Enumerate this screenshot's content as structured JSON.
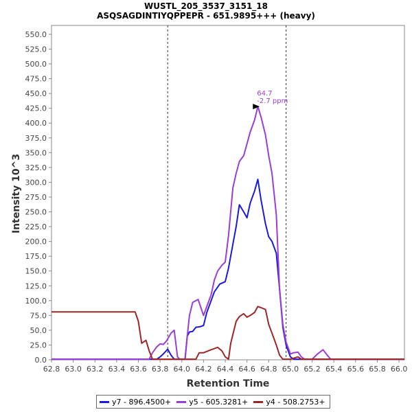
{
  "chart_data": {
    "type": "line",
    "title": "WUSTL_205_3537_3151_18",
    "subtitle": "ASQSAGDINTIYQPPEPR - 651.9895+++ (heavy)",
    "xlabel": "Retention Time",
    "ylabel": "Intensity 10^3",
    "xlim": [
      62.8,
      66.05
    ],
    "ylim": [
      0,
      565
    ],
    "x_ticks": [
      "62.8",
      "63.0",
      "63.2",
      "63.4",
      "63.6",
      "63.8",
      "64.0",
      "64.2",
      "64.4",
      "64.6",
      "64.8",
      "65.0",
      "65.2",
      "65.4",
      "65.6",
      "65.8",
      "66.0"
    ],
    "y_ticks": [
      "0.0",
      "25.0",
      "50.0",
      "75.0",
      "100.0",
      "125.0",
      "150.0",
      "175.0",
      "200.0",
      "225.0",
      "250.0",
      "275.0",
      "300.0",
      "325.0",
      "350.0",
      "375.0",
      "400.0",
      "425.0",
      "450.0",
      "475.0",
      "500.0",
      "525.0",
      "550.0"
    ],
    "vlines": [
      63.87,
      64.96
    ],
    "annotation": {
      "x": 64.73,
      "y": 428,
      "lines": [
        "64.7",
        "-2.7 ppm"
      ]
    },
    "legend_position": "bottom",
    "series": [
      {
        "name": "y7 - 896.4500+",
        "color": "#1a1adc",
        "points": [
          [
            62.8,
            1
          ],
          [
            63.77,
            1
          ],
          [
            63.8,
            5
          ],
          [
            63.83,
            10
          ],
          [
            63.87,
            18
          ],
          [
            63.9,
            8
          ],
          [
            63.93,
            1
          ],
          [
            64.03,
            1
          ],
          [
            64.05,
            40
          ],
          [
            64.07,
            47
          ],
          [
            64.1,
            48
          ],
          [
            64.13,
            55
          ],
          [
            64.17,
            56
          ],
          [
            64.2,
            58
          ],
          [
            64.23,
            80
          ],
          [
            64.27,
            100
          ],
          [
            64.3,
            115
          ],
          [
            64.35,
            128
          ],
          [
            64.4,
            132
          ],
          [
            64.43,
            155
          ],
          [
            64.47,
            195
          ],
          [
            64.5,
            225
          ],
          [
            64.53,
            262
          ],
          [
            64.57,
            250
          ],
          [
            64.6,
            240
          ],
          [
            64.63,
            265
          ],
          [
            64.67,
            285
          ],
          [
            64.7,
            305
          ],
          [
            64.73,
            270
          ],
          [
            64.77,
            230
          ],
          [
            64.8,
            208
          ],
          [
            64.83,
            200
          ],
          [
            64.87,
            180
          ],
          [
            64.9,
            120
          ],
          [
            64.93,
            55
          ],
          [
            64.96,
            25
          ],
          [
            65.0,
            5
          ],
          [
            65.03,
            1
          ],
          [
            66.05,
            1
          ]
        ]
      },
      {
        "name": "y5 - 605.3281+",
        "color": "#9a3cd8",
        "points": [
          [
            62.8,
            1
          ],
          [
            63.7,
            1
          ],
          [
            63.73,
            12
          ],
          [
            63.77,
            22
          ],
          [
            63.8,
            27
          ],
          [
            63.83,
            26
          ],
          [
            63.86,
            32
          ],
          [
            63.9,
            45
          ],
          [
            63.93,
            50
          ],
          [
            63.96,
            5
          ],
          [
            63.98,
            1
          ],
          [
            64.03,
            1
          ],
          [
            64.05,
            40
          ],
          [
            64.07,
            75
          ],
          [
            64.1,
            97
          ],
          [
            64.15,
            102
          ],
          [
            64.2,
            75
          ],
          [
            64.23,
            90
          ],
          [
            64.27,
            110
          ],
          [
            64.3,
            135
          ],
          [
            64.33,
            150
          ],
          [
            64.37,
            160
          ],
          [
            64.4,
            165
          ],
          [
            64.43,
            210
          ],
          [
            64.47,
            290
          ],
          [
            64.5,
            315
          ],
          [
            64.53,
            335
          ],
          [
            64.57,
            345
          ],
          [
            64.6,
            365
          ],
          [
            64.63,
            385
          ],
          [
            64.67,
            405
          ],
          [
            64.7,
            428
          ],
          [
            64.73,
            410
          ],
          [
            64.77,
            380
          ],
          [
            64.8,
            345
          ],
          [
            64.83,
            315
          ],
          [
            64.87,
            245
          ],
          [
            64.9,
            120
          ],
          [
            64.93,
            60
          ],
          [
            64.96,
            30
          ],
          [
            65.0,
            10
          ],
          [
            65.03,
            12
          ],
          [
            65.07,
            13
          ],
          [
            65.1,
            5
          ],
          [
            65.13,
            1
          ],
          [
            65.2,
            1
          ],
          [
            65.25,
            10
          ],
          [
            65.3,
            17
          ],
          [
            65.33,
            10
          ],
          [
            65.37,
            1
          ],
          [
            66.05,
            1
          ]
        ]
      },
      {
        "name": "y4 - 508.2753+",
        "color": "#a02424",
        "points": [
          [
            62.8,
            81
          ],
          [
            63.57,
            81
          ],
          [
            63.6,
            65
          ],
          [
            63.63,
            28
          ],
          [
            63.67,
            33
          ],
          [
            63.7,
            15
          ],
          [
            63.73,
            1
          ],
          [
            64.13,
            1
          ],
          [
            64.16,
            12
          ],
          [
            64.2,
            12
          ],
          [
            64.27,
            17
          ],
          [
            64.33,
            21
          ],
          [
            64.37,
            15
          ],
          [
            64.4,
            5
          ],
          [
            64.43,
            1
          ],
          [
            64.45,
            28
          ],
          [
            64.5,
            65
          ],
          [
            64.53,
            73
          ],
          [
            64.57,
            78
          ],
          [
            64.6,
            72
          ],
          [
            64.63,
            75
          ],
          [
            64.67,
            80
          ],
          [
            64.7,
            90
          ],
          [
            64.73,
            88
          ],
          [
            64.77,
            85
          ],
          [
            64.8,
            60
          ],
          [
            64.83,
            45
          ],
          [
            64.87,
            25
          ],
          [
            64.9,
            8
          ],
          [
            64.93,
            1
          ],
          [
            65.0,
            1
          ],
          [
            65.07,
            5
          ],
          [
            65.1,
            1
          ],
          [
            66.05,
            1
          ]
        ]
      }
    ]
  }
}
